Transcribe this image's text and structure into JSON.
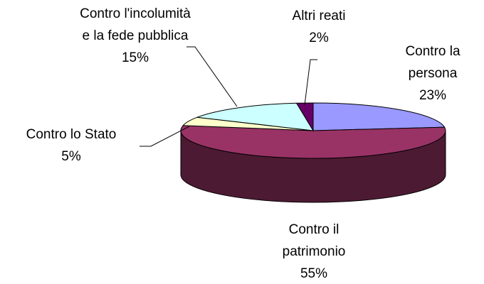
{
  "chart_data": {
    "type": "pie",
    "categories": [
      "Contro la persona",
      "Contro il patrimonio",
      "Contro lo Stato",
      "Contro l'incolumità e la fede pubblica",
      "Altri reati"
    ],
    "values": [
      23,
      55,
      5,
      15,
      2
    ],
    "value_labels": [
      "23%",
      "55%",
      "5%",
      "15%",
      "2%"
    ],
    "colors": [
      "#9999ff",
      "#993366",
      "#ffffcc",
      "#ccffff",
      "#660066"
    ]
  }
}
